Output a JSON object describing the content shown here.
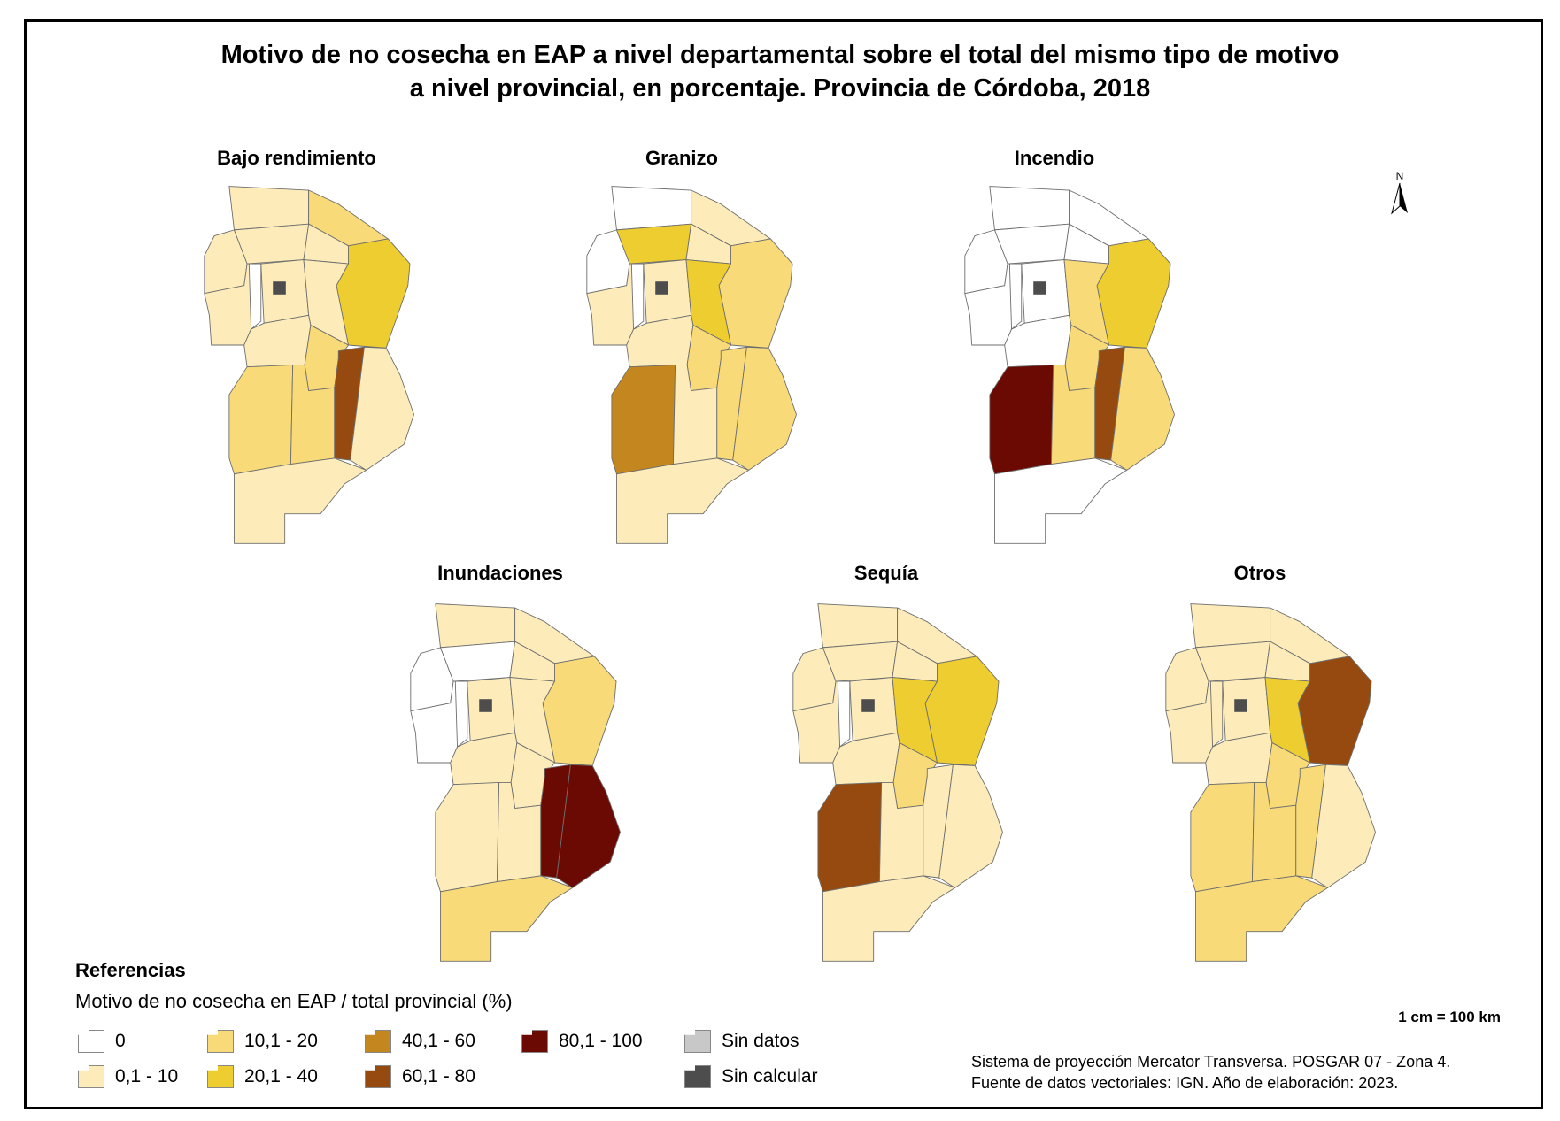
{
  "title_line1": "Motivo de no cosecha en EAP a nivel departamental sobre el total del mismo tipo de motivo",
  "title_line2": "a nivel provincial, en porcentaje. Provincia de Córdoba, 2018",
  "north_label": "N",
  "colors": [
    "#ffffff",
    "#fdecb9",
    "#f8da78",
    "#eecd30",
    "#c4871f",
    "#974a0f",
    "#6b0a02",
    "#c8c8c8",
    "#4d4d4d"
  ],
  "maps": [
    {
      "title": "Bajo rendimiento",
      "departments": {
        "D1": 1,
        "D2": 2,
        "D3": 1,
        "D4": 1,
        "D5": 1,
        "D6": 3,
        "D7": 0,
        "D9": 1,
        "D10": 1,
        "D11": 1,
        "D12": 1,
        "D13": 2,
        "D14": 2,
        "D15": 2,
        "D16": 5,
        "D17": 1,
        "D18": 1
      }
    },
    {
      "title": "Granizo",
      "departments": {
        "D1": 0,
        "D2": 1,
        "D3": 0,
        "D4": 3,
        "D5": 1,
        "D6": 2,
        "D7": 0,
        "D9": 1,
        "D10": 3,
        "D11": 1,
        "D12": 1,
        "D13": 2,
        "D14": 4,
        "D15": 1,
        "D16": 2,
        "D17": 2,
        "D18": 1
      }
    },
    {
      "title": "Incendio",
      "departments": {
        "D1": 0,
        "D2": 0,
        "D3": 0,
        "D4": 0,
        "D5": 0,
        "D6": 3,
        "D7": 0,
        "D9": 0,
        "D10": 2,
        "D11": 0,
        "D12": 0,
        "D13": 2,
        "D14": 6,
        "D15": 2,
        "D16": 5,
        "D17": 2,
        "D18": 0
      }
    },
    {
      "title": "Inundaciones",
      "departments": {
        "D1": 1,
        "D2": 1,
        "D3": 0,
        "D4": 0,
        "D5": 1,
        "D6": 2,
        "D7": 0,
        "D9": 1,
        "D10": 1,
        "D11": 0,
        "D12": 1,
        "D13": 1,
        "D14": 1,
        "D15": 1,
        "D16": 6,
        "D17": 6,
        "D18": 2
      }
    },
    {
      "title": "Sequía",
      "departments": {
        "D1": 1,
        "D2": 1,
        "D3": 1,
        "D4": 1,
        "D5": 1,
        "D6": 3,
        "D7": 0,
        "D9": 1,
        "D10": 3,
        "D11": 1,
        "D12": 1,
        "D13": 2,
        "D14": 5,
        "D15": 1,
        "D16": 1,
        "D17": 1,
        "D18": 1
      }
    },
    {
      "title": "Otros",
      "departments": {
        "D1": 1,
        "D2": 1,
        "D3": 1,
        "D4": 1,
        "D5": 1,
        "D6": 5,
        "D7": 1,
        "D9": 1,
        "D10": 3,
        "D11": 1,
        "D12": 1,
        "D13": 2,
        "D14": 2,
        "D15": 2,
        "D16": 2,
        "D17": 1,
        "D18": 2
      }
    }
  ],
  "legend": {
    "title": "Referencias",
    "subtitle": "Motivo de no cosecha en EAP / total provincial (%)",
    "items": [
      {
        "label": "0",
        "color": 0
      },
      {
        "label": "0,1 - 10",
        "color": 1
      },
      {
        "label": "10,1 - 20",
        "color": 2
      },
      {
        "label": "20,1 - 40",
        "color": 3
      },
      {
        "label": "40,1 - 60",
        "color": 4
      },
      {
        "label": "60,1 - 80",
        "color": 5
      },
      {
        "label": "80,1 - 100",
        "color": 6
      },
      {
        "label": "Sin datos",
        "color": 7
      },
      {
        "label": "Sin calcular",
        "color": 8
      }
    ]
  },
  "scale": "1 cm = 100 km",
  "source_line1": "Sistema de proyección Mercator Transversa. POSGAR 07 - Zona 4.",
  "source_line2": "Fuente de datos vectoriales: IGN. Año de elaboración: 2023."
}
